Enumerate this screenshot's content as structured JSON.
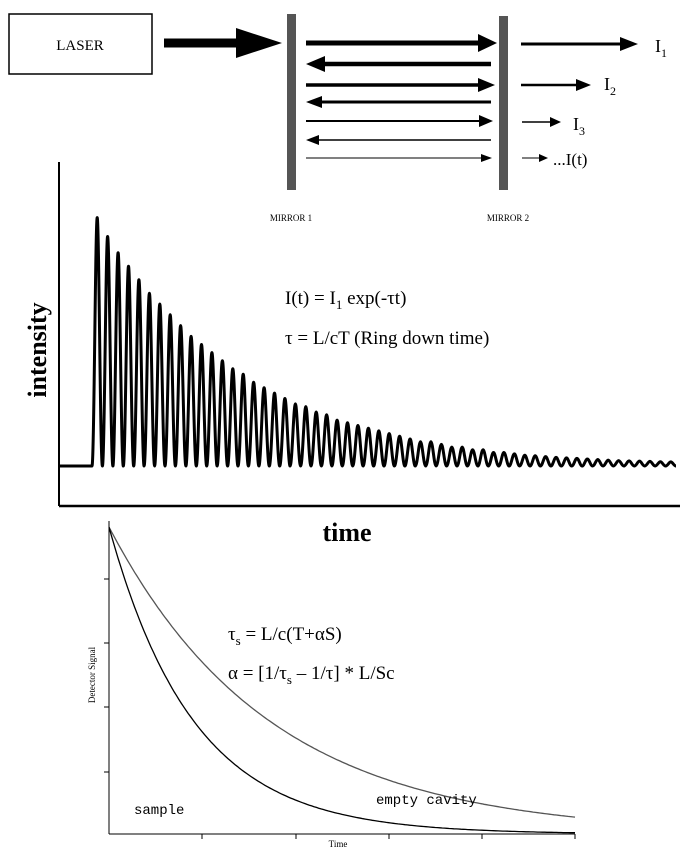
{
  "cavity": {
    "laser_label": "LASER",
    "mirror1_label": "MIRROR 1",
    "mirror2_label": "MIRROR 2",
    "outputs": [
      {
        "base": "I",
        "sub": "1",
        "suffix": ""
      },
      {
        "base": "I",
        "sub": "2",
        "suffix": ""
      },
      {
        "base": "I",
        "sub": "3",
        "suffix": ""
      },
      {
        "base": "...I(t)",
        "sub": "",
        "suffix": ""
      }
    ]
  },
  "ringdown": {
    "ylabel": "intensity",
    "xlabel": "time",
    "eq1": {
      "a": "I(t) = I",
      "sub": "1",
      "b": " exp(-τt)"
    },
    "eq2": "τ = L/cT  (Ring down time)"
  },
  "decay": {
    "ylabel": "Detector Signal",
    "xlabel": "Time",
    "eq1": {
      "a": "τ",
      "sub": "s",
      "b": " = L/c(T+αS)"
    },
    "eq2": {
      "a": "α = [1/τ",
      "sub": "s",
      "b": " – 1/τ] * L/Sc"
    },
    "label_sample": "sample",
    "label_empty": "empty cavity"
  },
  "chart_data": [
    {
      "type": "line",
      "xlabel": "time",
      "ylabel": "intensity",
      "series": [
        {
          "values": [
            0.92,
            0.85,
            0.79,
            0.74,
            0.69,
            0.64,
            0.6,
            0.56,
            0.52,
            0.48,
            0.45,
            0.42,
            0.39,
            0.36,
            0.34,
            0.31,
            0.29,
            0.27,
            0.25,
            0.23,
            0.22,
            0.2,
            0.19,
            0.17,
            0.16,
            0.15,
            0.14,
            0.13,
            0.12,
            0.11,
            0.1,
            0.09,
            0.09,
            0.08,
            0.07,
            0.07,
            0.06,
            0.06,
            0.05,
            0.05,
            0.045,
            0.04,
            0.038,
            0.035,
            0.032,
            0.03,
            0.028,
            0.026,
            0.024,
            0.022,
            0.02,
            0.019,
            0.018,
            0.017,
            0.016,
            0.015
          ]
        }
      ]
    },
    {
      "type": "line",
      "xlabel": "Time",
      "ylabel": "Detector Signal",
      "series": [
        {
          "name": "sample",
          "decay_rate": 5.5
        },
        {
          "name": "empty cavity",
          "decay_rate": 2.9
        }
      ]
    }
  ]
}
